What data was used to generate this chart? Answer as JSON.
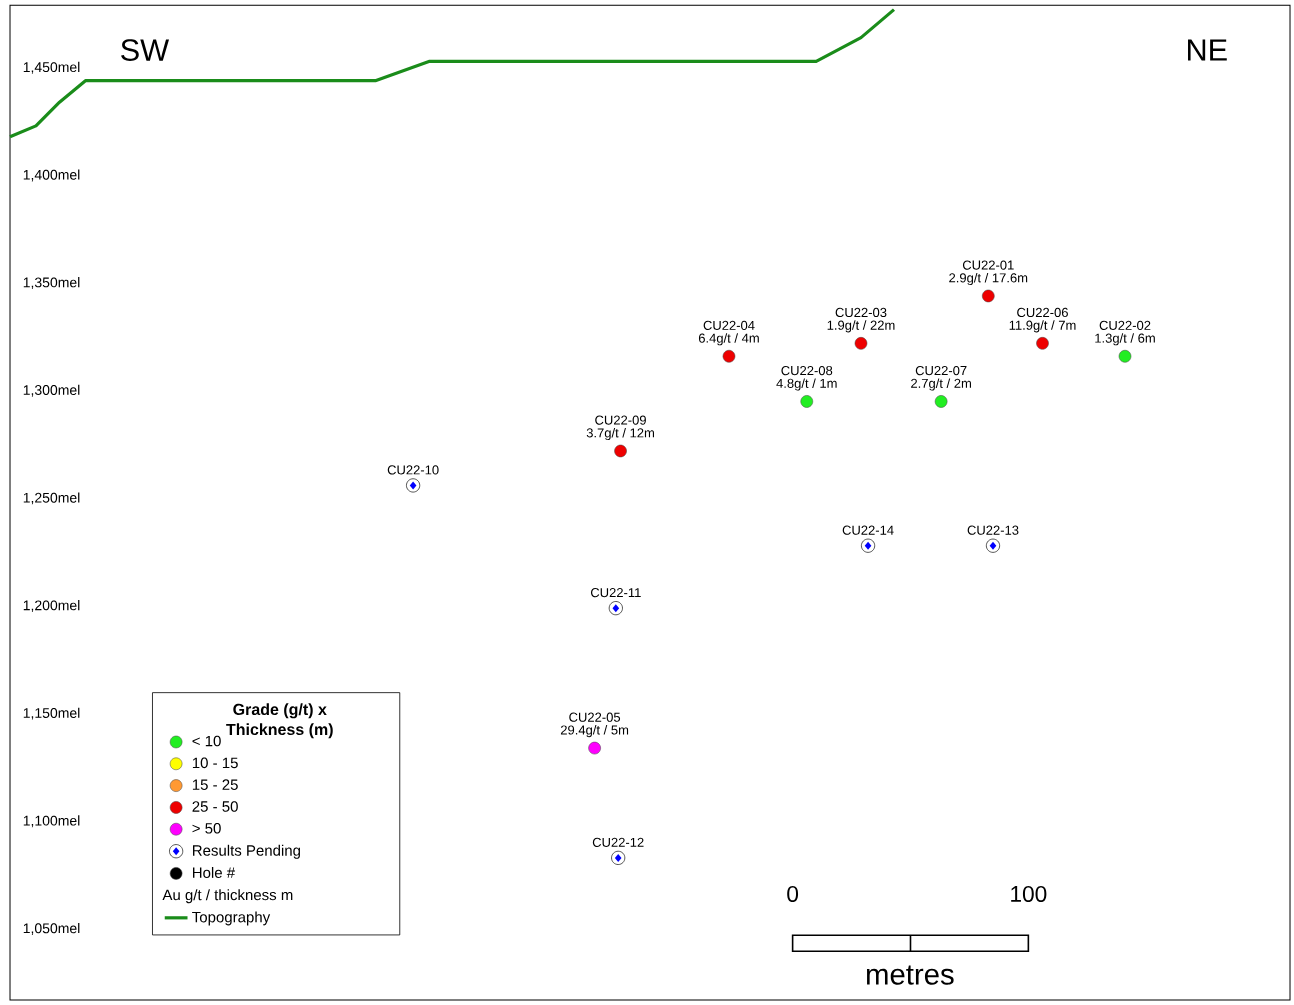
{
  "chart_data": {
    "type": "scatter",
    "xlim": [
      -332,
      211
    ],
    "ylim": [
      1017,
      1479
    ],
    "xticks": [
      0,
      100
    ],
    "yticks": [
      {
        "value": 1050,
        "label": "1,050mel"
      },
      {
        "value": 1100,
        "label": "1,100mel"
      },
      {
        "value": 1150,
        "label": "1,150mel"
      },
      {
        "value": 1200,
        "label": "1,200mel"
      },
      {
        "value": 1250,
        "label": "1,250mel"
      },
      {
        "value": 1300,
        "label": "1,300mel"
      },
      {
        "value": 1350,
        "label": "1,350mel"
      },
      {
        "value": 1400,
        "label": "1,400mel"
      },
      {
        "value": 1450,
        "label": "1,450mel"
      }
    ],
    "legend": "bottom left",
    "legend_title": "Grade (g/t) x Thickness (m)",
    "series": [
      {
        "name": "< 10",
        "marker": "circle",
        "color": "#22ee22",
        "x": [
          141,
          63,
          6
        ],
        "values": [
          1316,
          1295,
          1295
        ]
      },
      {
        "name": "10 - 15",
        "marker": "circle",
        "color": "#ffff00"
      },
      {
        "name": "15 - 25",
        "marker": "circle",
        "color": "#ff9933"
      },
      {
        "name": "25 - 50",
        "marker": "circle",
        "color": "#ee0000",
        "x": [
          83,
          29,
          -27,
          106,
          -73
        ],
        "values": [
          1344,
          1322,
          1316,
          1322,
          1272
        ]
      },
      {
        "name": "> 50",
        "marker": "circle",
        "color": "#ff00ff",
        "x": [
          -84
        ],
        "values": [
          1134
        ]
      },
      {
        "name": "Results Pending",
        "marker": "diamond",
        "color": "#0000ff",
        "x": [
          -161,
          -75,
          -74,
          85,
          32
        ],
        "values": [
          1256,
          1199,
          1083,
          1228,
          1228
        ]
      },
      {
        "name": "Hole #",
        "marker": "circle",
        "color": "#000000"
      },
      {
        "name": "Topography",
        "type": "line",
        "marker": "none",
        "line_style": "solid",
        "color": "#1a8c1a",
        "x": [
          -332,
          -321,
          -311,
          -300,
          -177,
          -154,
          10,
          29,
          43
        ],
        "values": [
          1418,
          1423,
          1434,
          1444,
          1444,
          1453,
          1453,
          1464,
          1477
        ]
      }
    ],
    "annotations": [
      "SW",
      "NE",
      "metres",
      "Au g/t / thickness m",
      {
        "text": "CU22-01",
        "x": 83,
        "y": 1344
      },
      {
        "text": "2.9g/t / 17.6m",
        "x": 83,
        "y": 1344
      },
      {
        "text": "CU22-02",
        "x": 141,
        "y": 1316
      },
      {
        "text": "1.3g/t / 6m",
        "x": 141,
        "y": 1316
      },
      {
        "text": "CU22-03",
        "x": 29,
        "y": 1322
      },
      {
        "text": "1.9g/t / 22m",
        "x": 29,
        "y": 1322
      },
      {
        "text": "CU22-04",
        "x": -27,
        "y": 1316
      },
      {
        "text": "6.4g/t / 4m",
        "x": -27,
        "y": 1316
      },
      {
        "text": "CU22-05",
        "x": -84,
        "y": 1134
      },
      {
        "text": "29.4g/t / 5m",
        "x": -84,
        "y": 1134
      },
      {
        "text": "CU22-06",
        "x": 106,
        "y": 1322
      },
      {
        "text": "11.9g/t / 7m",
        "x": 106,
        "y": 1322
      },
      {
        "text": "CU22-07",
        "x": 63,
        "y": 1295
      },
      {
        "text": "2.7g/t / 2m",
        "x": 63,
        "y": 1295
      },
      {
        "text": "CU22-08",
        "x": 6,
        "y": 1295
      },
      {
        "text": "4.8g/t / 1m",
        "x": 6,
        "y": 1295
      },
      {
        "text": "CU22-09",
        "x": -73,
        "y": 1272
      },
      {
        "text": "3.7g/t / 12m",
        "x": -73,
        "y": 1272
      },
      {
        "text": "CU22-10",
        "x": -161,
        "y": 1256
      },
      {
        "text": "CU22-11",
        "x": -75,
        "y": 1199
      },
      {
        "text": "CU22-12",
        "x": -74,
        "y": 1083
      },
      {
        "text": "CU22-13",
        "x": 85,
        "y": 1228
      },
      {
        "text": "CU22-14",
        "x": 32,
        "y": 1228
      }
    ]
  }
}
